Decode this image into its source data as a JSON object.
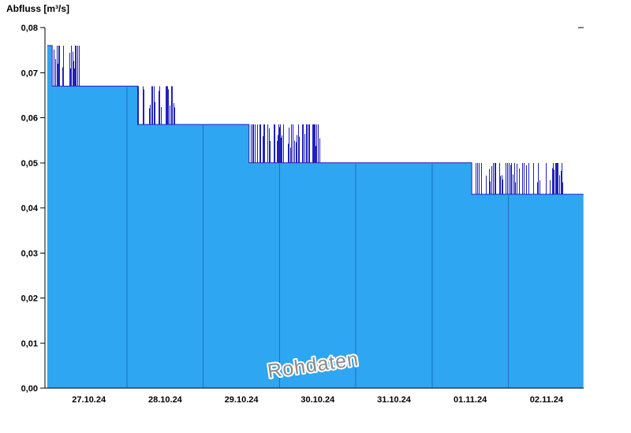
{
  "colors": {
    "fill": "#2ea6f2",
    "edge": "#2121bd",
    "spike": "#2121bd",
    "grid": "#1f6fbe",
    "axis": "#000000",
    "text": "#000000",
    "watermark": "#8a8a8a"
  },
  "chart_data": {
    "type": "area",
    "title": "Abfluss [m³/s]",
    "ylabel": "Abfluss [m³/s]",
    "watermark": "Rohdaten",
    "ylim": [
      0,
      0.08
    ],
    "grid": "vertical-day-lines-inside-fill-only",
    "legend": "none",
    "y_ticks": [
      {
        "value": 0.0,
        "label": "0,00"
      },
      {
        "value": 0.01,
        "label": "0,01"
      },
      {
        "value": 0.02,
        "label": "0,02"
      },
      {
        "value": 0.03,
        "label": "0,03"
      },
      {
        "value": 0.04,
        "label": "0,04"
      },
      {
        "value": 0.05,
        "label": "0,05"
      },
      {
        "value": 0.06,
        "label": "0,06"
      },
      {
        "value": 0.07,
        "label": "0,07"
      },
      {
        "value": 0.08,
        "label": "0,08"
      }
    ],
    "x_day_labels": [
      "27.10.24",
      "28.10.24",
      "29.10.24",
      "30.10.24",
      "31.10.24",
      "01.11.24",
      "02.11.24"
    ],
    "x_gridlines_t": [
      1,
      2,
      3,
      4,
      5,
      6
    ],
    "t_range": [
      -0.045,
      6.985
    ],
    "segments": [
      {
        "type": "flat",
        "t0": -0.045,
        "t1": 0.02,
        "value": 0.076
      },
      {
        "type": "noise",
        "t0": 0.02,
        "t1": 0.37,
        "low": 0.067,
        "high": 0.076,
        "density": 0.55
      },
      {
        "type": "flat",
        "t0": 0.37,
        "t1": 1.14,
        "value": 0.067
      },
      {
        "type": "noise",
        "t0": 1.14,
        "t1": 1.63,
        "low": 0.0585,
        "high": 0.067,
        "density": 0.4
      },
      {
        "type": "flat",
        "t0": 1.63,
        "t1": 2.6,
        "value": 0.0585
      },
      {
        "type": "noise",
        "t0": 2.6,
        "t1": 3.56,
        "low": 0.05,
        "high": 0.0585,
        "density": 0.5
      },
      {
        "type": "flat",
        "t0": 3.56,
        "t1": 5.52,
        "value": 0.05
      },
      {
        "type": "noise",
        "t0": 5.52,
        "t1": 6.73,
        "low": 0.043,
        "high": 0.05,
        "density": 0.45
      },
      {
        "type": "flat",
        "t0": 6.73,
        "t1": 6.985,
        "value": 0.043
      }
    ]
  }
}
